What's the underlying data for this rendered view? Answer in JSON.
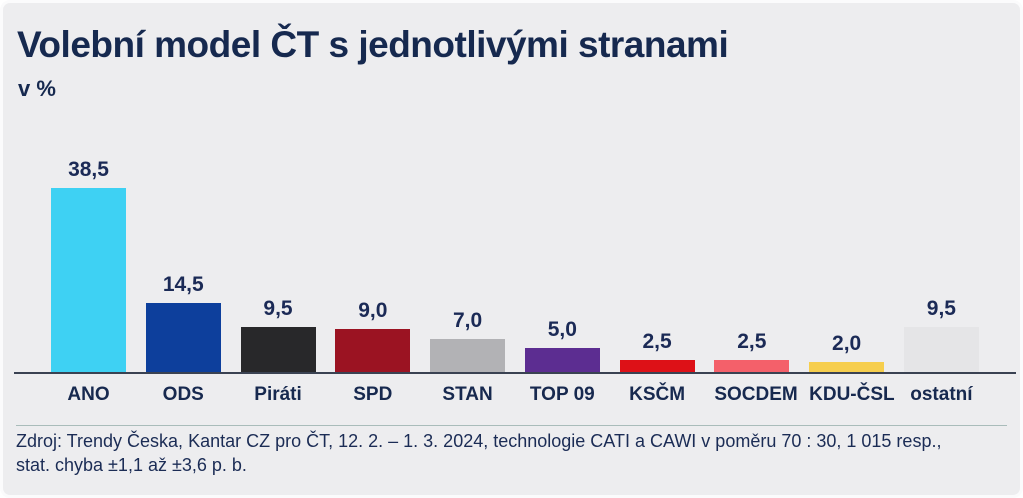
{
  "header": {
    "title": "Volební model ČT s jednotlivými stranami",
    "subtitle": "v %"
  },
  "chart_data": {
    "type": "bar",
    "title": "Volební model ČT s jednotlivými stranami",
    "subtitle": "v %",
    "categories": [
      "ANO",
      "ODS",
      "Piráti",
      "SPD",
      "STAN",
      "TOP 09",
      "KSČM",
      "SOCDEM",
      "KDU-ČSL",
      "ostatní"
    ],
    "values": [
      38.5,
      14.5,
      9.5,
      9.0,
      7.0,
      5.0,
      2.5,
      2.5,
      2.0,
      9.5
    ],
    "value_labels": [
      "38,5",
      "14,5",
      "9,5",
      "9,0",
      "7,0",
      "5,0",
      "2,5",
      "2,5",
      "2,0",
      "9,5"
    ],
    "bar_colors": [
      "#3ED1F3",
      "#0D3F9C",
      "#28282A",
      "#9B1322",
      "#B2B2B5",
      "#5C2D91",
      "#DD1117",
      "#F4606A",
      "#F6CE4D",
      "#E5E5E7"
    ],
    "xlabel": "",
    "ylabel": "v %",
    "ylim": [
      0,
      40
    ],
    "grid": false,
    "legend": false,
    "data_labels": true
  },
  "footer": {
    "source_line1": "Zdroj: Trendy Česka, Kantar CZ pro ČT, 12. 2. – 1. 3. 2024, technologie CATI a CAWI v poměru 70 : 30, 1 015 resp.,",
    "source_line2": "stat. chyba ±1,1 až ±3,6 p. b."
  },
  "colors": {
    "background": "#EDEDEF",
    "text_navy": "#16294F",
    "axis_line": "#3A4252",
    "divider": "#A9BCBA"
  }
}
